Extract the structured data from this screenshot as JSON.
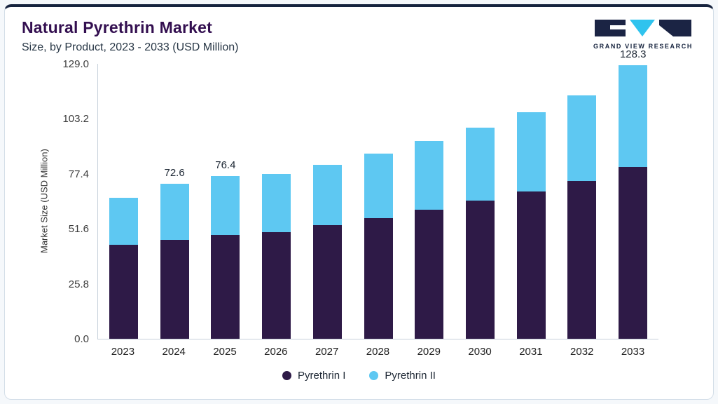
{
  "header": {
    "title": "Natural Pyrethrin Market",
    "subtitle": "Size, by Product, 2023 - 2033 (USD Million)",
    "logo_text": "GRAND VIEW RESEARCH"
  },
  "colors": {
    "accent_dark_navy": "#16233e",
    "title_purple": "#330f50",
    "pyrethrin1": "#2e1a47",
    "pyrethrin2": "#5ec8f2",
    "axis_line": "#c6d0da"
  },
  "chart_data": {
    "type": "bar",
    "stacked": true,
    "title": "Natural Pyrethrin Market Size, by Product, 2023 - 2033 (USD Million)",
    "ylabel": "Market Size (USD Million)",
    "xlabel": "",
    "ylim": [
      0,
      129.0
    ],
    "yticks": [
      0.0,
      25.8,
      51.6,
      77.4,
      103.2,
      129.0
    ],
    "grid": false,
    "legend_position": "bottom",
    "categories": [
      "2023",
      "2024",
      "2025",
      "2026",
      "2027",
      "2028",
      "2029",
      "2030",
      "2031",
      "2032",
      "2033"
    ],
    "series": [
      {
        "name": "Pyrethrin I",
        "color": "#2e1a47",
        "values": [
          44.0,
          46.3,
          48.8,
          49.9,
          53.3,
          56.6,
          60.5,
          64.9,
          69.2,
          74.0,
          80.5
        ]
      },
      {
        "name": "Pyrethrin II",
        "color": "#5ec8f2",
        "values": [
          22.0,
          26.3,
          27.6,
          27.4,
          28.3,
          30.4,
          32.3,
          34.1,
          37.1,
          40.2,
          47.8
        ]
      }
    ],
    "totals": [
      66.0,
      72.6,
      76.4,
      77.3,
      81.6,
      87.0,
      92.8,
      99.0,
      106.3,
      114.2,
      128.3
    ],
    "bar_labels": {
      "2024": "72.6",
      "2025": "76.4",
      "2033": "128.3"
    }
  }
}
